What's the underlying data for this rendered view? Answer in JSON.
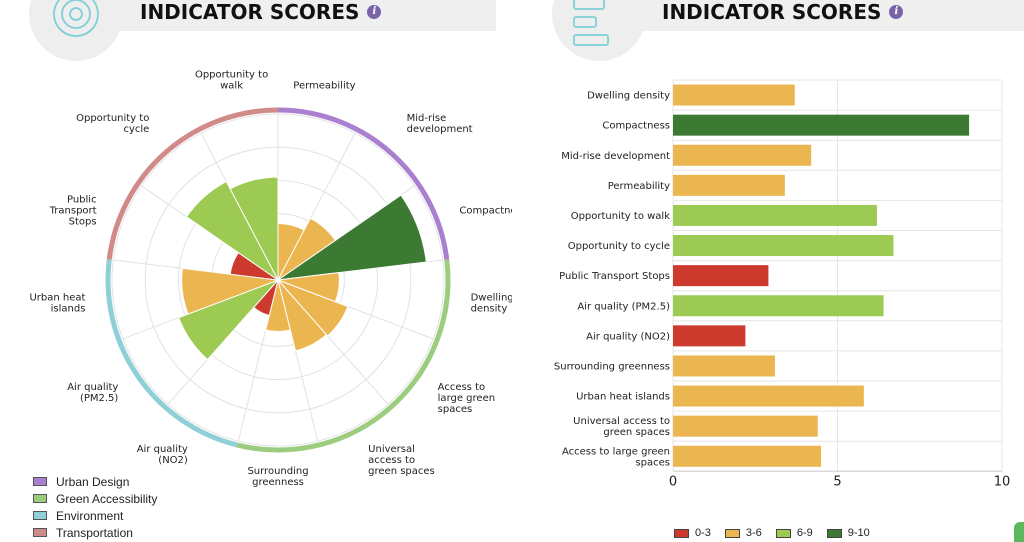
{
  "left_panel": {
    "title": "INDICATOR SCORES",
    "info_icon": "info-icon",
    "header_icon": "target-icon"
  },
  "right_panel": {
    "title": "INDICATOR SCORES",
    "info_icon": "info-icon",
    "header_icon": "bars-icon"
  },
  "category_colors": {
    "Urban Design": "#a97fcf",
    "Green Accessibility": "#9ccc7e",
    "Environment": "#8ecfd8",
    "Transportation": "#d08a87"
  },
  "score_colors": {
    "0-3": "#cc3a2e",
    "3-6": "#ebb550",
    "6-9": "#9dca52",
    "9-10": "#3c7a34"
  },
  "chart_data": [
    {
      "type": "polar-area",
      "max": 10,
      "rings": 5,
      "categories": [
        "Permeability",
        "Mid-rise development",
        "Compactness",
        "Dwelling density",
        "Access to large green spaces",
        "Universal access to green spaces",
        "Surrounding greenness",
        "Air quality (NO2)",
        "Air quality (PM2.5)",
        "Urban heat islands",
        "Public Transport Stops",
        "Opportunity to cycle",
        "Opportunity to walk"
      ],
      "values": [
        3.4,
        4.2,
        9.0,
        3.7,
        4.5,
        4.4,
        3.1,
        2.2,
        6.4,
        5.8,
        2.9,
        6.7,
        6.2
      ],
      "groups": [
        {
          "name": "Urban Design",
          "indices": [
            0,
            1,
            2
          ]
        },
        {
          "name": "Green Accessibility",
          "indices": [
            3,
            4,
            5,
            6
          ]
        },
        {
          "name": "Environment",
          "indices": [
            7,
            8,
            9
          ]
        },
        {
          "name": "Transportation",
          "indices": [
            10,
            11,
            12
          ]
        }
      ],
      "legend": [
        "Urban Design",
        "Green Accessibility",
        "Environment",
        "Transportation"
      ],
      "legend_position": "bottom-left"
    },
    {
      "type": "bar",
      "orientation": "horizontal",
      "categories": [
        "Dwelling density",
        "Compactness",
        "Mid-rise development",
        "Permeability",
        "Opportunity to walk",
        "Opportunity to cycle",
        "Public Transport Stops",
        "Air quality (PM2.5)",
        "Air quality (NO2)",
        "Surrounding greenness",
        "Urban heat islands",
        "Universal access to green spaces",
        "Access to large green spaces"
      ],
      "values": [
        3.7,
        9.0,
        4.2,
        3.4,
        6.2,
        6.7,
        2.9,
        6.4,
        2.2,
        3.1,
        5.8,
        4.4,
        4.5
      ],
      "xlim": [
        0,
        10
      ],
      "xticks": [
        "0",
        "5",
        "10"
      ],
      "grid": true,
      "legend": [
        "0-3",
        "3-6",
        "6-9",
        "9-10"
      ],
      "legend_position": "bottom"
    }
  ]
}
